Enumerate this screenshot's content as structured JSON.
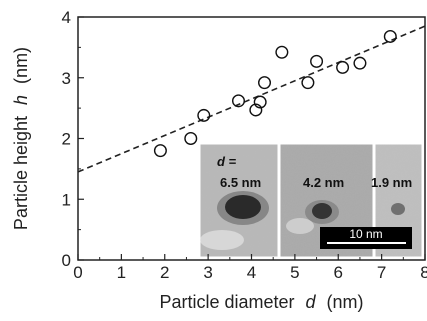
{
  "chart_data": {
    "type": "scatter",
    "title": "",
    "xlabel": "Particle diameter",
    "xlabel_var": "d",
    "xlabel_unit": "(nm)",
    "ylabel": "Particle height",
    "ylabel_var": "h",
    "ylabel_unit": "(nm)",
    "xlim": [
      0,
      8
    ],
    "ylim": [
      0,
      4
    ],
    "xticks": [
      0,
      1,
      2,
      3,
      4,
      5,
      6,
      7,
      8
    ],
    "yticks": [
      0,
      1,
      2,
      3,
      4
    ],
    "marker": "open-circle",
    "points": [
      {
        "x": 1.9,
        "y": 1.8
      },
      {
        "x": 2.6,
        "y": 2.0
      },
      {
        "x": 2.9,
        "y": 2.38
      },
      {
        "x": 3.7,
        "y": 2.62
      },
      {
        "x": 4.1,
        "y": 2.47
      },
      {
        "x": 4.2,
        "y": 2.6
      },
      {
        "x": 4.3,
        "y": 2.92
      },
      {
        "x": 4.7,
        "y": 3.42
      },
      {
        "x": 5.3,
        "y": 2.92
      },
      {
        "x": 5.5,
        "y": 3.27
      },
      {
        "x": 6.1,
        "y": 3.17
      },
      {
        "x": 6.5,
        "y": 3.24
      },
      {
        "x": 7.2,
        "y": 3.68
      }
    ],
    "fit_line": {
      "style": "dashed",
      "x0": 0,
      "y0": 1.45,
      "x1": 8,
      "y1": 3.85
    },
    "inset": {
      "d_label": "d =",
      "panels": [
        {
          "label": "6.5 nm",
          "tone": "#b8b8b8"
        },
        {
          "label": "4.2 nm",
          "tone": "#a9a9a9"
        },
        {
          "label": "1.9 nm",
          "tone": "#bfbfbf"
        }
      ],
      "scale_bar": "10 nm"
    }
  }
}
